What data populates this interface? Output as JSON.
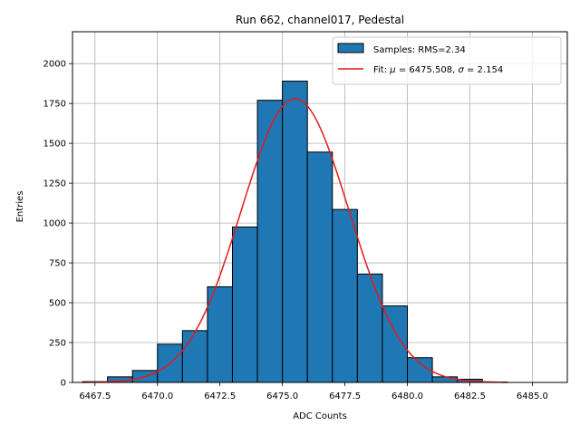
{
  "chart_data": {
    "type": "bar",
    "title": "Run 662, channel017, Pedestal",
    "xlabel": "ADC Counts",
    "ylabel": "Entries",
    "xlim": [
      6466.6,
      6486.4
    ],
    "ylim": [
      0,
      2200
    ],
    "xticks": [
      6467.5,
      6470.0,
      6472.5,
      6475.0,
      6477.5,
      6480.0,
      6482.5,
      6485.0
    ],
    "xtick_labels": [
      "6467.5",
      "6470.0",
      "6472.5",
      "6475.0",
      "6477.5",
      "6480.0",
      "6482.5",
      "6485.0"
    ],
    "yticks": [
      0,
      250,
      500,
      750,
      1000,
      1250,
      1500,
      1750,
      2000
    ],
    "ytick_labels": [
      "0",
      "250",
      "500",
      "750",
      "1000",
      "1250",
      "1500",
      "1750",
      "2000"
    ],
    "grid": true,
    "legend_position": "top-right",
    "bar_color": "#1f77b4",
    "fit_color": "#e41a1c",
    "series": [
      {
        "name": "Samples: RMS=2.34",
        "bins": [
          {
            "left": 6467,
            "right": 6468,
            "value": 5
          },
          {
            "left": 6468,
            "right": 6469,
            "value": 35
          },
          {
            "left": 6469,
            "right": 6470,
            "value": 75
          },
          {
            "left": 6470,
            "right": 6471,
            "value": 240
          },
          {
            "left": 6471,
            "right": 6472,
            "value": 325
          },
          {
            "left": 6472,
            "right": 6473,
            "value": 600
          },
          {
            "left": 6473,
            "right": 6474,
            "value": 975
          },
          {
            "left": 6474,
            "right": 6475,
            "value": 1770
          },
          {
            "left": 6475,
            "right": 6476,
            "value": 1890
          },
          {
            "left": 6476,
            "right": 6477,
            "value": 1445
          },
          {
            "left": 6477,
            "right": 6478,
            "value": 1085
          },
          {
            "left": 6478,
            "right": 6479,
            "value": 680
          },
          {
            "left": 6479,
            "right": 6480,
            "value": 480
          },
          {
            "left": 6480,
            "right": 6481,
            "value": 155
          },
          {
            "left": 6481,
            "right": 6482,
            "value": 35
          },
          {
            "left": 6482,
            "right": 6483,
            "value": 20
          },
          {
            "left": 6483,
            "right": 6484,
            "value": 3
          },
          {
            "left": 6484,
            "right": 6485,
            "value": 0
          },
          {
            "left": 6485,
            "right": 6486,
            "value": 0
          }
        ]
      },
      {
        "name": "Fit: μ = 6475.508, σ = 2.154",
        "label_prefix": "Fit: ",
        "label_mu": "μ",
        "label_mu_value": " = 6475.508, ",
        "label_sigma": "σ",
        "label_sigma_value": " = 2.154",
        "mu": 6475.508,
        "sigma": 2.154,
        "amplitude": 1780,
        "range": [
          6467,
          6484
        ]
      }
    ]
  }
}
